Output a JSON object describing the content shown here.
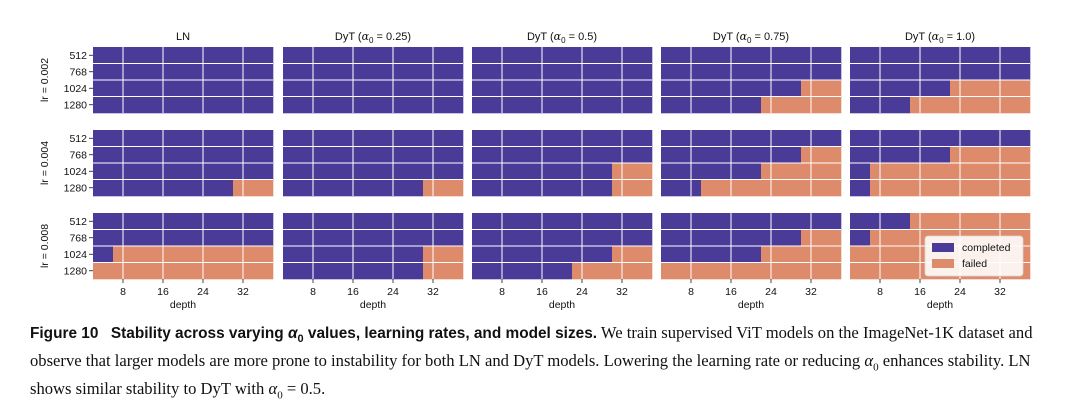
{
  "figure": {
    "column_titles": [
      "LN",
      "DyT (",
      "DyT (",
      "DyT (",
      "DyT ("
    ],
    "column_alpha_values": [
      "",
      "0.25",
      "0.5",
      "0.75",
      "1.0"
    ],
    "row_labels": [
      "lr = 0.002",
      "lr = 0.004",
      "lr = 0.008"
    ],
    "y_ticks": [
      "512",
      "768",
      "1024",
      "1280"
    ],
    "x_ticks": [
      "8",
      "16",
      "24",
      "32"
    ],
    "x_label": "depth",
    "legend": {
      "completed": "completed",
      "failed": "failed"
    },
    "colors": {
      "completed": "#4b3b98",
      "failed": "#de8b6c",
      "grid": "#ffffff"
    }
  },
  "chart_data": {
    "type": "heatmap",
    "x_label": "depth",
    "x_values": [
      4,
      8,
      12,
      16,
      20,
      24,
      28,
      32,
      36
    ],
    "y_values": [
      512,
      768,
      1024,
      1280
    ],
    "status_codes": {
      "0": "completed",
      "1": "failed"
    },
    "panels": [
      {
        "lr": "0.002",
        "model": "LN",
        "grid": [
          [
            0,
            0,
            0,
            0,
            0,
            0,
            0,
            0,
            0
          ],
          [
            0,
            0,
            0,
            0,
            0,
            0,
            0,
            0,
            0
          ],
          [
            0,
            0,
            0,
            0,
            0,
            0,
            0,
            0,
            0
          ],
          [
            0,
            0,
            0,
            0,
            0,
            0,
            0,
            0,
            0
          ]
        ]
      },
      {
        "lr": "0.002",
        "model": "DyT",
        "alpha0": "0.25",
        "grid": [
          [
            0,
            0,
            0,
            0,
            0,
            0,
            0,
            0,
            0
          ],
          [
            0,
            0,
            0,
            0,
            0,
            0,
            0,
            0,
            0
          ],
          [
            0,
            0,
            0,
            0,
            0,
            0,
            0,
            0,
            0
          ],
          [
            0,
            0,
            0,
            0,
            0,
            0,
            0,
            0,
            0
          ]
        ]
      },
      {
        "lr": "0.002",
        "model": "DyT",
        "alpha0": "0.5",
        "grid": [
          [
            0,
            0,
            0,
            0,
            0,
            0,
            0,
            0,
            0
          ],
          [
            0,
            0,
            0,
            0,
            0,
            0,
            0,
            0,
            0
          ],
          [
            0,
            0,
            0,
            0,
            0,
            0,
            0,
            0,
            0
          ],
          [
            0,
            0,
            0,
            0,
            0,
            0,
            0,
            0,
            0
          ]
        ]
      },
      {
        "lr": "0.002",
        "model": "DyT",
        "alpha0": "0.75",
        "grid": [
          [
            0,
            0,
            0,
            0,
            0,
            0,
            0,
            0,
            0
          ],
          [
            0,
            0,
            0,
            0,
            0,
            0,
            0,
            0,
            0
          ],
          [
            0,
            0,
            0,
            0,
            0,
            0,
            0,
            1,
            1
          ],
          [
            0,
            0,
            0,
            0,
            0,
            1,
            1,
            1,
            1
          ]
        ]
      },
      {
        "lr": "0.002",
        "model": "DyT",
        "alpha0": "1.0",
        "grid": [
          [
            0,
            0,
            0,
            0,
            0,
            0,
            0,
            0,
            0
          ],
          [
            0,
            0,
            0,
            0,
            0,
            0,
            0,
            0,
            0
          ],
          [
            0,
            0,
            0,
            0,
            0,
            1,
            1,
            1,
            1
          ],
          [
            0,
            0,
            0,
            1,
            1,
            1,
            1,
            1,
            1
          ]
        ]
      },
      {
        "lr": "0.004",
        "model": "LN",
        "grid": [
          [
            0,
            0,
            0,
            0,
            0,
            0,
            0,
            0,
            0
          ],
          [
            0,
            0,
            0,
            0,
            0,
            0,
            0,
            0,
            0
          ],
          [
            0,
            0,
            0,
            0,
            0,
            0,
            0,
            0,
            0
          ],
          [
            0,
            0,
            0,
            0,
            0,
            0,
            0,
            1,
            1
          ]
        ]
      },
      {
        "lr": "0.004",
        "model": "DyT",
        "alpha0": "0.25",
        "grid": [
          [
            0,
            0,
            0,
            0,
            0,
            0,
            0,
            0,
            0
          ],
          [
            0,
            0,
            0,
            0,
            0,
            0,
            0,
            0,
            0
          ],
          [
            0,
            0,
            0,
            0,
            0,
            0,
            0,
            0,
            0
          ],
          [
            0,
            0,
            0,
            0,
            0,
            0,
            0,
            1,
            1
          ]
        ]
      },
      {
        "lr": "0.004",
        "model": "DyT",
        "alpha0": "0.5",
        "grid": [
          [
            0,
            0,
            0,
            0,
            0,
            0,
            0,
            0,
            0
          ],
          [
            0,
            0,
            0,
            0,
            0,
            0,
            0,
            0,
            0
          ],
          [
            0,
            0,
            0,
            0,
            0,
            0,
            0,
            1,
            1
          ],
          [
            0,
            0,
            0,
            0,
            0,
            0,
            0,
            1,
            1
          ]
        ]
      },
      {
        "lr": "0.004",
        "model": "DyT",
        "alpha0": "0.75",
        "grid": [
          [
            0,
            0,
            0,
            0,
            0,
            0,
            0,
            0,
            0
          ],
          [
            0,
            0,
            0,
            0,
            0,
            0,
            0,
            1,
            1
          ],
          [
            0,
            0,
            0,
            0,
            0,
            1,
            1,
            1,
            1
          ],
          [
            0,
            0,
            1,
            1,
            1,
            1,
            1,
            1,
            1
          ]
        ]
      },
      {
        "lr": "0.004",
        "model": "DyT",
        "alpha0": "1.0",
        "grid": [
          [
            0,
            0,
            0,
            0,
            0,
            0,
            0,
            0,
            0
          ],
          [
            0,
            0,
            0,
            0,
            0,
            1,
            1,
            1,
            1
          ],
          [
            0,
            1,
            1,
            1,
            1,
            1,
            1,
            1,
            1
          ],
          [
            0,
            1,
            1,
            1,
            1,
            1,
            1,
            1,
            1
          ]
        ]
      },
      {
        "lr": "0.008",
        "model": "LN",
        "grid": [
          [
            0,
            0,
            0,
            0,
            0,
            0,
            0,
            0,
            0
          ],
          [
            0,
            0,
            0,
            0,
            0,
            0,
            0,
            0,
            0
          ],
          [
            0,
            1,
            1,
            1,
            1,
            1,
            1,
            1,
            1
          ],
          [
            1,
            1,
            1,
            1,
            1,
            1,
            1,
            1,
            1
          ]
        ]
      },
      {
        "lr": "0.008",
        "model": "DyT",
        "alpha0": "0.25",
        "grid": [
          [
            0,
            0,
            0,
            0,
            0,
            0,
            0,
            0,
            0
          ],
          [
            0,
            0,
            0,
            0,
            0,
            0,
            0,
            0,
            0
          ],
          [
            0,
            0,
            0,
            0,
            0,
            0,
            0,
            1,
            1
          ],
          [
            0,
            0,
            0,
            0,
            0,
            0,
            0,
            1,
            1
          ]
        ]
      },
      {
        "lr": "0.008",
        "model": "DyT",
        "alpha0": "0.5",
        "grid": [
          [
            0,
            0,
            0,
            0,
            0,
            0,
            0,
            0,
            0
          ],
          [
            0,
            0,
            0,
            0,
            0,
            0,
            0,
            0,
            0
          ],
          [
            0,
            0,
            0,
            0,
            0,
            0,
            0,
            1,
            1
          ],
          [
            0,
            0,
            0,
            0,
            0,
            1,
            1,
            1,
            1
          ]
        ]
      },
      {
        "lr": "0.008",
        "model": "DyT",
        "alpha0": "0.75",
        "grid": [
          [
            0,
            0,
            0,
            0,
            0,
            0,
            0,
            0,
            0
          ],
          [
            0,
            0,
            0,
            0,
            0,
            0,
            0,
            1,
            1
          ],
          [
            0,
            0,
            0,
            0,
            0,
            1,
            1,
            1,
            1
          ],
          [
            1,
            1,
            1,
            1,
            1,
            1,
            1,
            1,
            1
          ]
        ]
      },
      {
        "lr": "0.008",
        "model": "DyT",
        "alpha0": "1.0",
        "grid": [
          [
            0,
            0,
            0,
            1,
            1,
            1,
            1,
            1,
            1
          ],
          [
            0,
            1,
            1,
            1,
            1,
            1,
            1,
            1,
            1
          ],
          [
            1,
            1,
            1,
            1,
            1,
            1,
            1,
            1,
            1
          ],
          [
            1,
            1,
            1,
            1,
            1,
            1,
            1,
            1,
            1
          ]
        ]
      }
    ]
  },
  "caption": {
    "label": "Figure 10",
    "title_before_alpha": "Stability across varying ",
    "alpha_symbol": "α",
    "alpha_subscript": "0",
    "title_after_alpha": " values, learning rates, and model sizes.",
    "text_1": " We train supervised ViT models on the ImageNet-1K dataset and observe that larger models are more prone to instability for both LN and DyT models. Lowering the learning rate or reducing ",
    "alpha_symbol_2": "α",
    "alpha_subscript_2": "0",
    "text_2": " enhances stability. LN shows similar stability to DyT with ",
    "alpha_symbol_3": "α",
    "alpha_subscript_3": "0",
    "text_3": " = 0.5."
  }
}
